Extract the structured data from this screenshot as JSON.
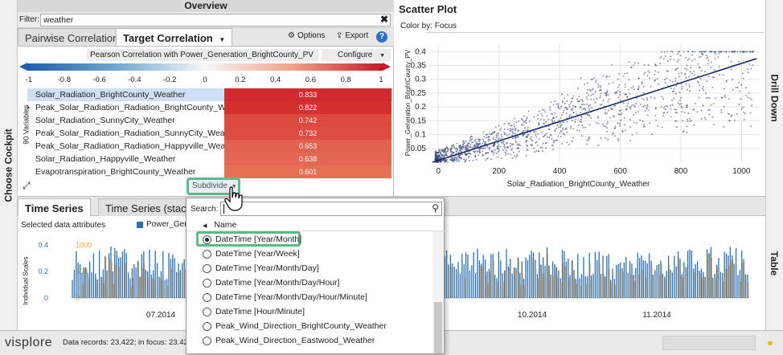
{
  "cockpit": {
    "label": "Choose Cockpit"
  },
  "overview": {
    "title": "Overview",
    "filter_label": "Filter:",
    "filter_value": "weather",
    "tabs": [
      {
        "label": "Pairwise Correlation"
      },
      {
        "label": "Target Correlation"
      }
    ],
    "options_label": "Options",
    "export_label": "Export",
    "correlation_select": "Pearson Correlation with Power_Generation_BrightCounty_PV",
    "configure_label": "Configure",
    "scale_ticks": [
      "-1",
      "-0.8",
      "-0.6",
      "-0.4",
      "-0.2",
      "0",
      "0.2",
      "0.4",
      "0.6",
      "0.8",
      "1"
    ],
    "variables_label": "90 Variables",
    "rows": [
      {
        "name": "Solar_Radiation_BrightCounty_Weather",
        "value": "0.833",
        "color": "#d12b2f"
      },
      {
        "name": "Peak_Solar_Radiation_Radiation_BrightCounty_Weather",
        "value": "0.822",
        "color": "#d3302f"
      },
      {
        "name": "Solar_Radiation_SunnyCity_Weather",
        "value": "0.742",
        "color": "#dc4a3f"
      },
      {
        "name": "Peak_Solar_Radiation_Radiation_SunnyCity_Weather",
        "value": "0.732",
        "color": "#dd4d41"
      },
      {
        "name": "Peak_Solar_Radiation_Radiation_Happyville_Weather",
        "value": "0.653",
        "color": "#e2624f"
      },
      {
        "name": "Solar_Radiation_Happyville_Weather",
        "value": "0.638",
        "color": "#e36652"
      },
      {
        "name": "Evapotranspiration_BrightCounty_Weather",
        "value": "0.601",
        "color": "#e67056"
      }
    ],
    "subdivide_label": "Subdivide"
  },
  "scatter": {
    "title": "Scatter Plot",
    "color_by": "Color by: Focus",
    "drill_down": "Drill Down"
  },
  "chart_data": {
    "type": "scatter",
    "xlabel": "Solar_Radiation_BrightCounty_Weather",
    "ylabel": "Power_Generation_BrightCounty_PV",
    "xlim": [
      -30,
      1060
    ],
    "ylim": [
      0,
      0.43
    ],
    "xticks": [
      "0",
      "200",
      "400",
      "600",
      "800",
      "1000"
    ],
    "yticks": [
      "0.05",
      "0.1",
      "0.15",
      "0.2",
      "0.25",
      "0.3",
      "0.35",
      "0.4"
    ],
    "regression": {
      "x1": -20,
      "y1": 0.0,
      "x2": 1050,
      "y2": 0.375
    }
  },
  "timeseries": {
    "tabs": [
      {
        "label": "Time Series"
      },
      {
        "label": "Time Series (stacke"
      }
    ],
    "selected_label": "Selected data attributes",
    "legend_label": "Power_Gene",
    "ylabel": "Individual Scales",
    "y_ticks_blue": [
      "0.4",
      "0.2",
      "0"
    ],
    "y_ticks_orange": [
      "1000",
      "500",
      "0"
    ],
    "x_ticks": [
      "07.2014",
      "10.2014",
      "11.2014"
    ],
    "table_label": "Table"
  },
  "dropdown": {
    "search_label": "Search:",
    "name_header": "Name",
    "items": [
      {
        "label": "DateTime [Year/Month]",
        "selected": true
      },
      {
        "label": "DateTime [Year/Week]",
        "selected": false
      },
      {
        "label": "DateTime [Year/Month/Day]",
        "selected": false
      },
      {
        "label": "DateTime [Year/Month/Day/Hour]",
        "selected": false
      },
      {
        "label": "DateTime [Year/Month/Day/Hour/Minute]",
        "selected": false
      },
      {
        "label": "DateTime [Hour/Minute]",
        "selected": false
      },
      {
        "label": "Peak_Wind_Direction_BrightCounty_Weather",
        "selected": false
      },
      {
        "label": "Peak_Wind_Direction_Eastwood_Weather",
        "selected": false
      }
    ]
  },
  "status": {
    "brand": "visplore",
    "text": "Data records: 23.422; in focus: 23.422 ("
  },
  "colors": {
    "blue": "#2a6fb0",
    "orange": "#f0a040",
    "highlight": "#5fb88a"
  }
}
